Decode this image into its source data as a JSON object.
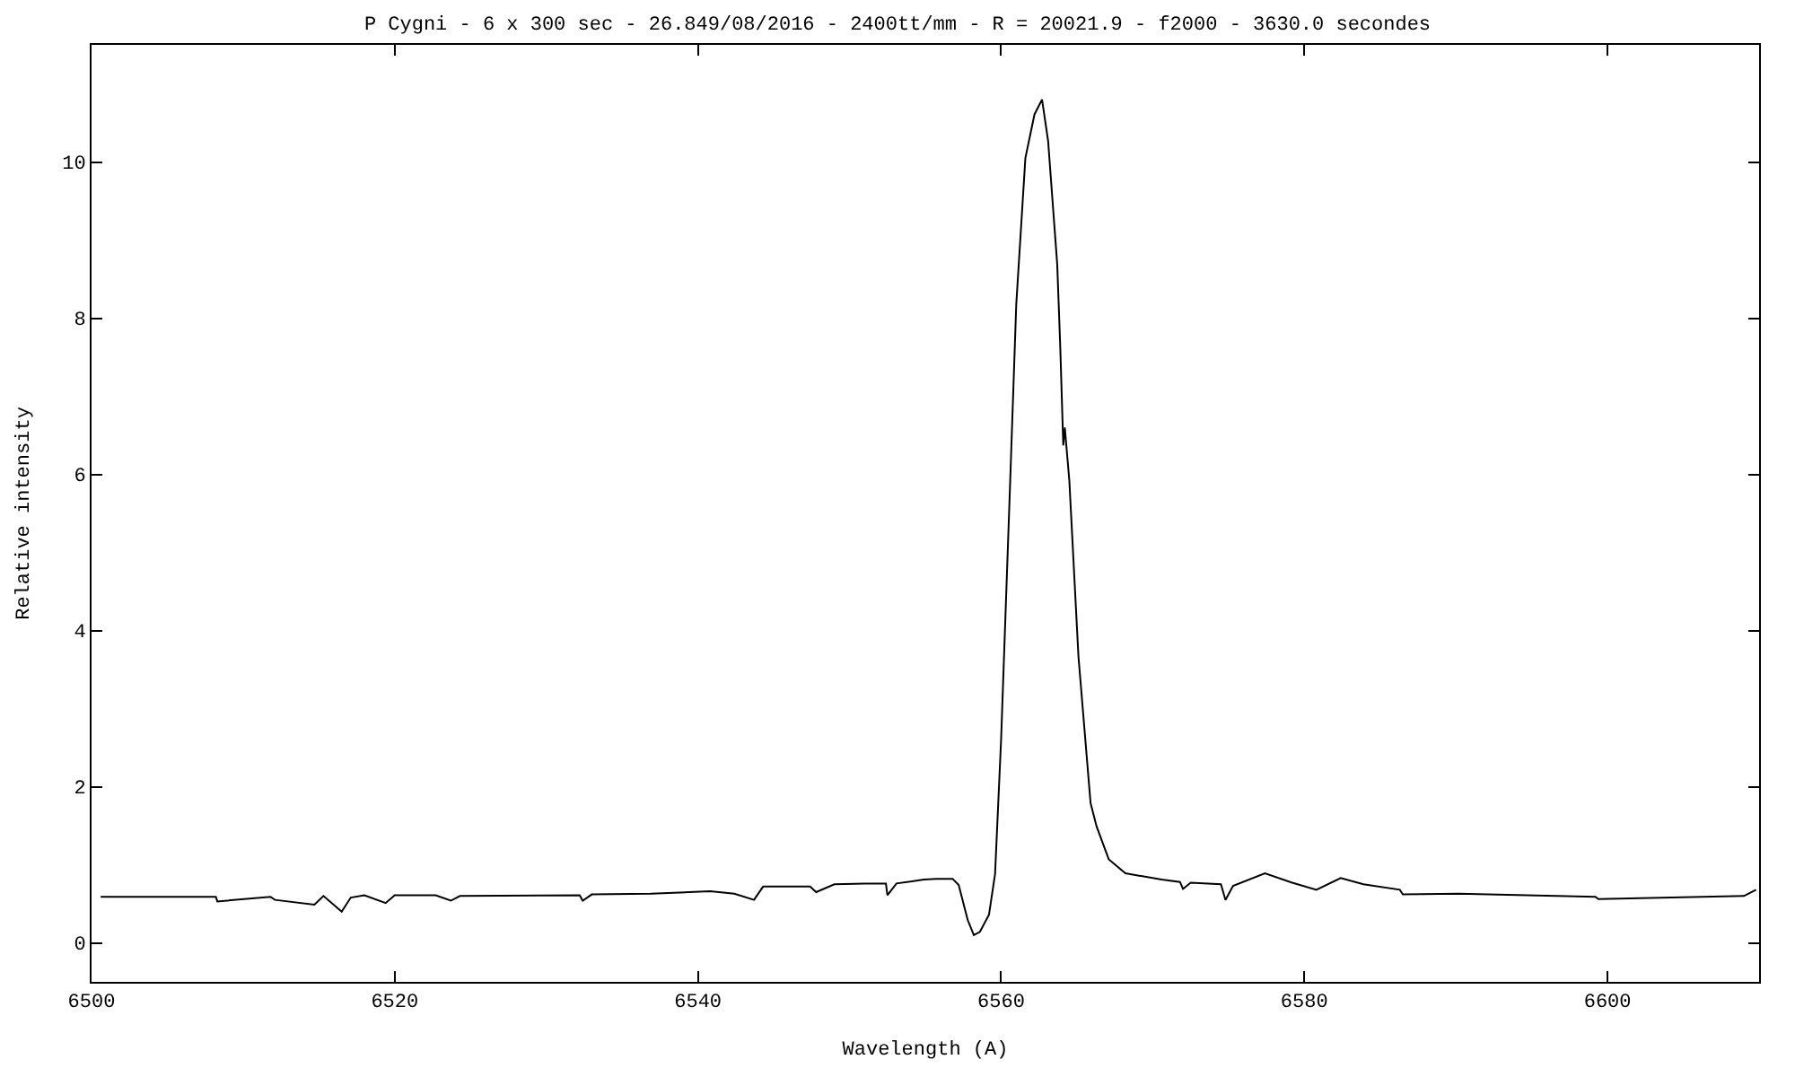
{
  "chart_data": {
    "type": "line",
    "title": "P Cygni - 6 x 300 sec - 26.849/08/2016 - 2400tt/mm - R = 20021.9 - f2000 - 3630.0 secondes",
    "xlabel": "Wavelength (A)",
    "ylabel": "Relative intensity",
    "x": [
      6500.6,
      6508.2,
      6508.3,
      6511.8,
      6512.1,
      6514.7,
      6515.3,
      6516.5,
      6517.1,
      6518.0,
      6519.4,
      6520.0,
      6522.7,
      6523.7,
      6524.3,
      6532.2,
      6532.4,
      6533.0,
      6536.9,
      6540.8,
      6542.4,
      6543.7,
      6544.3,
      6547.4,
      6547.8,
      6549.0,
      6551.0,
      6552.4,
      6552.5,
      6553.1,
      6554.9,
      6555.7,
      6556.8,
      6557.2,
      6557.8,
      6558.2,
      6558.6,
      6559.2,
      6559.6,
      6560.0,
      6560.6,
      6561.0,
      6561.6,
      6562.2,
      6562.7,
      6563.1,
      6563.7,
      6563.9,
      6564.1,
      6564.2,
      6564.5,
      6565.1,
      6565.9,
      6566.3,
      6567.1,
      6568.2,
      6570.6,
      6571.8,
      6572.0,
      6572.5,
      6574.5,
      6574.8,
      6575.3,
      6577.4,
      6579.2,
      6580.8,
      6582.4,
      6583.9,
      6586.3,
      6586.5,
      6590.2,
      6599.2,
      6599.4,
      6609.0,
      6609.8
    ],
    "series": [
      {
        "color": "#000000",
        "values": [
          0.59,
          0.59,
          0.53,
          0.59,
          0.55,
          0.49,
          0.6,
          0.4,
          0.58,
          0.61,
          0.51,
          0.61,
          0.61,
          0.54,
          0.6,
          0.61,
          0.54,
          0.62,
          0.63,
          0.66,
          0.63,
          0.55,
          0.72,
          0.72,
          0.65,
          0.75,
          0.76,
          0.76,
          0.61,
          0.76,
          0.81,
          0.82,
          0.82,
          0.74,
          0.29,
          0.1,
          0.14,
          0.36,
          0.88,
          2.61,
          5.92,
          8.18,
          10.05,
          10.61,
          10.8,
          10.27,
          8.69,
          7.64,
          6.37,
          6.6,
          5.92,
          3.67,
          1.79,
          1.49,
          1.07,
          0.89,
          0.81,
          0.78,
          0.69,
          0.77,
          0.75,
          0.55,
          0.73,
          0.89,
          0.77,
          0.68,
          0.83,
          0.75,
          0.68,
          0.62,
          0.63,
          0.59,
          0.56,
          0.6,
          0.68
        ]
      }
    ],
    "xlim": [
      6500,
      6610
    ],
    "xticks": [
      6500,
      6520,
      6540,
      6560,
      6580,
      6600
    ],
    "ylim": [
      -0.5,
      11.5
    ],
    "yticks": [
      0,
      2,
      4,
      6,
      8,
      10
    ],
    "marker": "none",
    "line_style": "solid"
  }
}
